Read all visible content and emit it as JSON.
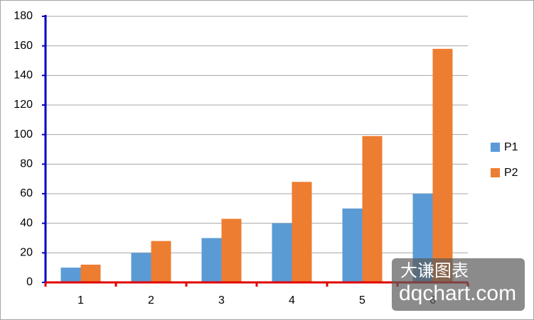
{
  "chart_data": {
    "type": "bar",
    "categories": [
      "1",
      "2",
      "3",
      "4",
      "5",
      "6"
    ],
    "series": [
      {
        "name": "P1",
        "color": "#5b9bd5",
        "values": [
          10,
          20,
          30,
          40,
          50,
          60
        ]
      },
      {
        "name": "P2",
        "color": "#ed7d31",
        "values": [
          12,
          28,
          43,
          68,
          99,
          158
        ]
      }
    ],
    "ylim": [
      0,
      180
    ],
    "yticks": [
      0,
      20,
      40,
      60,
      80,
      100,
      120,
      140,
      160,
      180
    ],
    "grid": true,
    "legend": "right",
    "watermark": {
      "line1": "大谦图表",
      "line2": "dqchart.com"
    }
  }
}
